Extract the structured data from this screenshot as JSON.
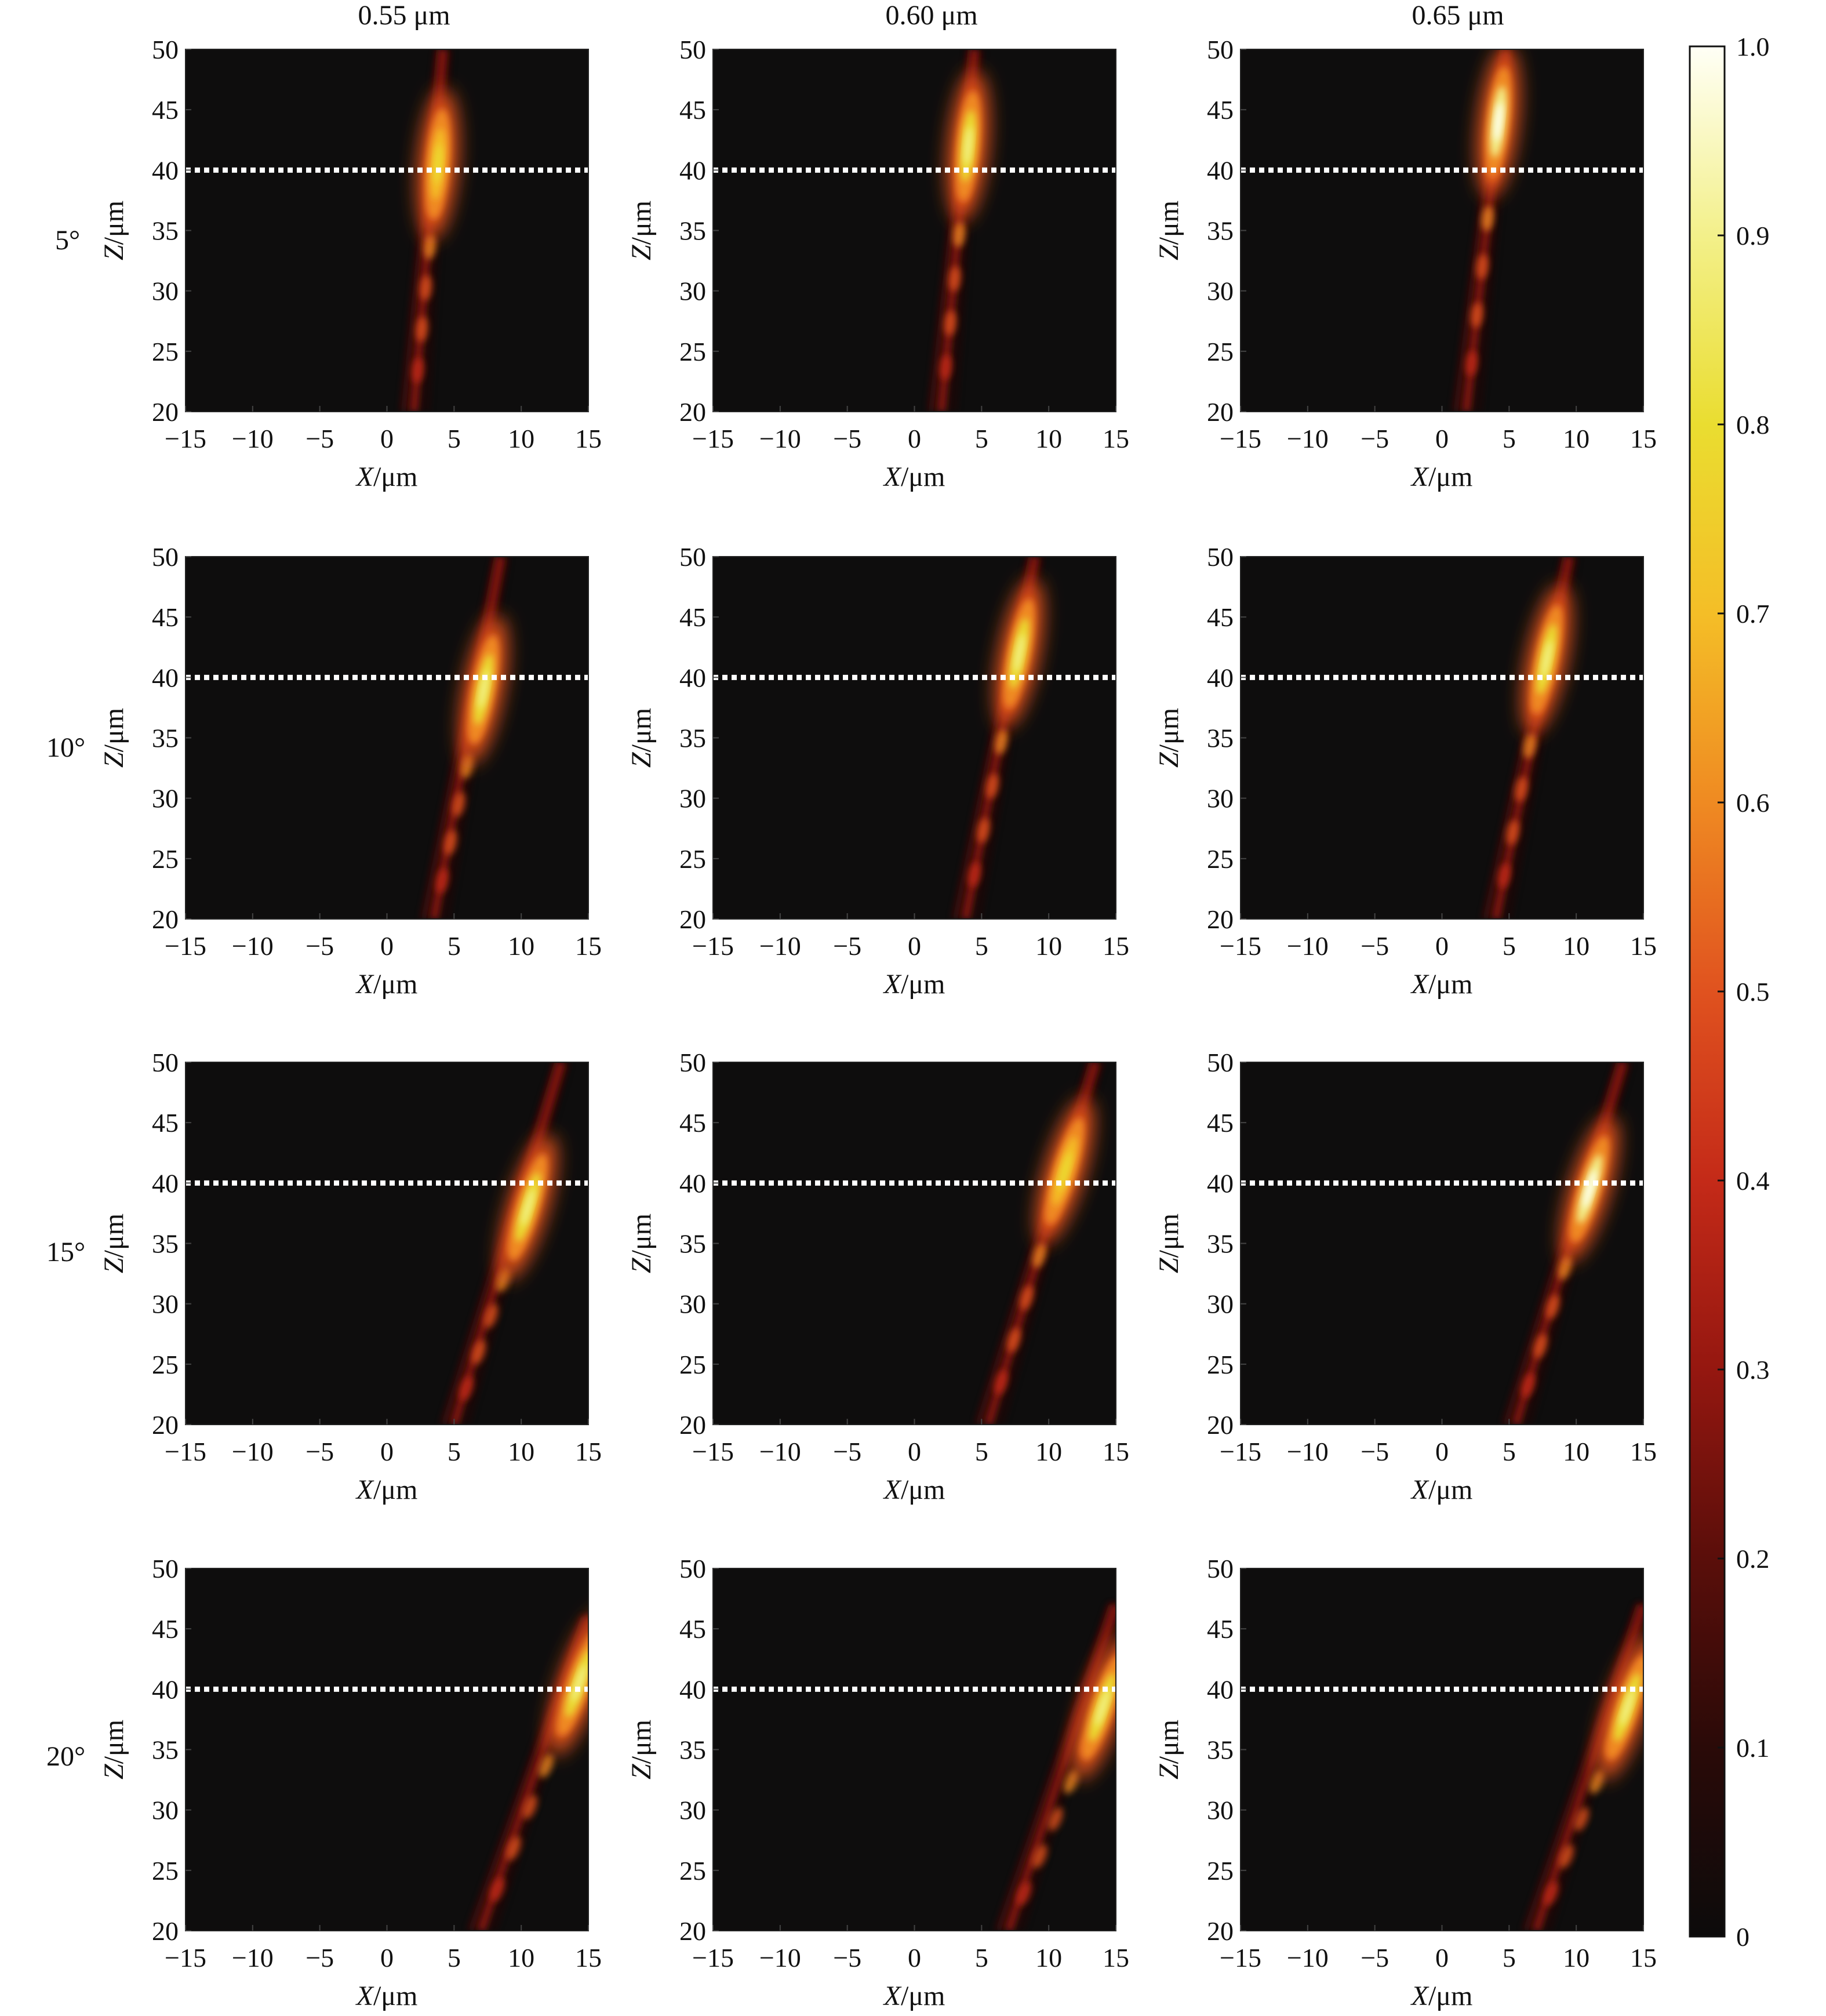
{
  "figure": {
    "column_titles": [
      "0.55 μm",
      "0.60 μm",
      "0.65 μm"
    ],
    "row_labels": [
      "5°",
      "10°",
      "15°",
      "20°"
    ]
  },
  "axes": {
    "xlabel_italic": "X",
    "xlabel_unit": "/μm",
    "ylabel_italic": "Z",
    "ylabel_unit": "/μm",
    "xticks": [
      "−15",
      "−10",
      "−5",
      "0",
      "5",
      "10",
      "15"
    ],
    "yticks": [
      "20",
      "25",
      "30",
      "35",
      "40",
      "45",
      "50"
    ]
  },
  "colorbar": {
    "labels": [
      "0",
      "0.1",
      "0.2",
      "0.3",
      "0.4",
      "0.5",
      "0.6",
      "0.7",
      "0.8",
      "0.9",
      "1.0"
    ],
    "colormap": [
      "#0c0b0b",
      "#2a0a08",
      "#5a0e0a",
      "#951710",
      "#c42a18",
      "#e0521f",
      "#ef8a22",
      "#f4be27",
      "#eadd30",
      "#f3f08a",
      "#fffff6"
    ]
  },
  "chart_data": {
    "type": "heatmap",
    "description_of_axes": "normalized intensity vs X and Z",
    "x_range": [
      -15,
      15
    ],
    "z_range": [
      20,
      50
    ],
    "value_range": [
      0,
      1
    ],
    "colormap_name": "hot",
    "focal_plane_z": 40,
    "panels": [
      {
        "row": "5°",
        "col": "0.55 μm",
        "focus": {
          "x": 3.8,
          "z": 40.5,
          "peak": 0.75
        },
        "beam_start": {
          "x": 2.0,
          "z": 20
        },
        "beam_end": {
          "x": 4.2,
          "z": 50
        }
      },
      {
        "row": "5°",
        "col": "0.60 μm",
        "focus": {
          "x": 4.0,
          "z": 42.0,
          "peak": 0.85
        },
        "beam_start": {
          "x": 2.0,
          "z": 20
        },
        "beam_end": {
          "x": 4.5,
          "z": 50
        }
      },
      {
        "row": "5°",
        "col": "0.65 μm",
        "focus": {
          "x": 4.2,
          "z": 44.0,
          "peak": 0.95
        },
        "beam_start": {
          "x": 1.8,
          "z": 20
        },
        "beam_end": {
          "x": 4.8,
          "z": 50
        }
      },
      {
        "row": "10°",
        "col": "0.55 μm",
        "focus": {
          "x": 7.2,
          "z": 39.0,
          "peak": 0.85
        },
        "beam_start": {
          "x": 3.5,
          "z": 20
        },
        "beam_end": {
          "x": 8.5,
          "z": 50
        }
      },
      {
        "row": "10°",
        "col": "0.60 μm",
        "focus": {
          "x": 7.8,
          "z": 42.0,
          "peak": 0.9
        },
        "beam_start": {
          "x": 3.8,
          "z": 20
        },
        "beam_end": {
          "x": 9.0,
          "z": 50
        }
      },
      {
        "row": "10°",
        "col": "0.65 μm",
        "focus": {
          "x": 7.8,
          "z": 41.5,
          "peak": 0.85
        },
        "beam_start": {
          "x": 4.0,
          "z": 20
        },
        "beam_end": {
          "x": 9.5,
          "z": 50
        }
      },
      {
        "row": "15°",
        "col": "0.55 μm",
        "focus": {
          "x": 10.5,
          "z": 38.0,
          "peak": 0.85
        },
        "beam_start": {
          "x": 5.0,
          "z": 20
        },
        "beam_end": {
          "x": 13.0,
          "z": 50
        }
      },
      {
        "row": "15°",
        "col": "0.60 μm",
        "focus": {
          "x": 11.2,
          "z": 41.0,
          "peak": 0.8
        },
        "beam_start": {
          "x": 5.5,
          "z": 20
        },
        "beam_end": {
          "x": 13.5,
          "z": 50
        }
      },
      {
        "row": "15°",
        "col": "0.65 μm",
        "focus": {
          "x": 11.0,
          "z": 39.5,
          "peak": 0.95
        },
        "beam_start": {
          "x": 5.5,
          "z": 20
        },
        "beam_end": {
          "x": 13.5,
          "z": 50
        }
      },
      {
        "row": "20°",
        "col": "0.55 μm",
        "focus": {
          "x": 14.3,
          "z": 40.5,
          "peak": 0.9
        },
        "beam_start": {
          "x": 7.0,
          "z": 20
        },
        "beam_end": {
          "x": 15.0,
          "z": 46
        }
      },
      {
        "row": "20°",
        "col": "0.60 μm",
        "focus": {
          "x": 14.0,
          "z": 38.5,
          "peak": 0.9
        },
        "beam_start": {
          "x": 7.0,
          "z": 20
        },
        "beam_end": {
          "x": 15.0,
          "z": 47
        }
      },
      {
        "row": "20°",
        "col": "0.65 μm",
        "focus": {
          "x": 13.8,
          "z": 38.5,
          "peak": 0.9
        },
        "beam_start": {
          "x": 7.0,
          "z": 20
        },
        "beam_end": {
          "x": 15.0,
          "z": 47
        }
      }
    ]
  }
}
